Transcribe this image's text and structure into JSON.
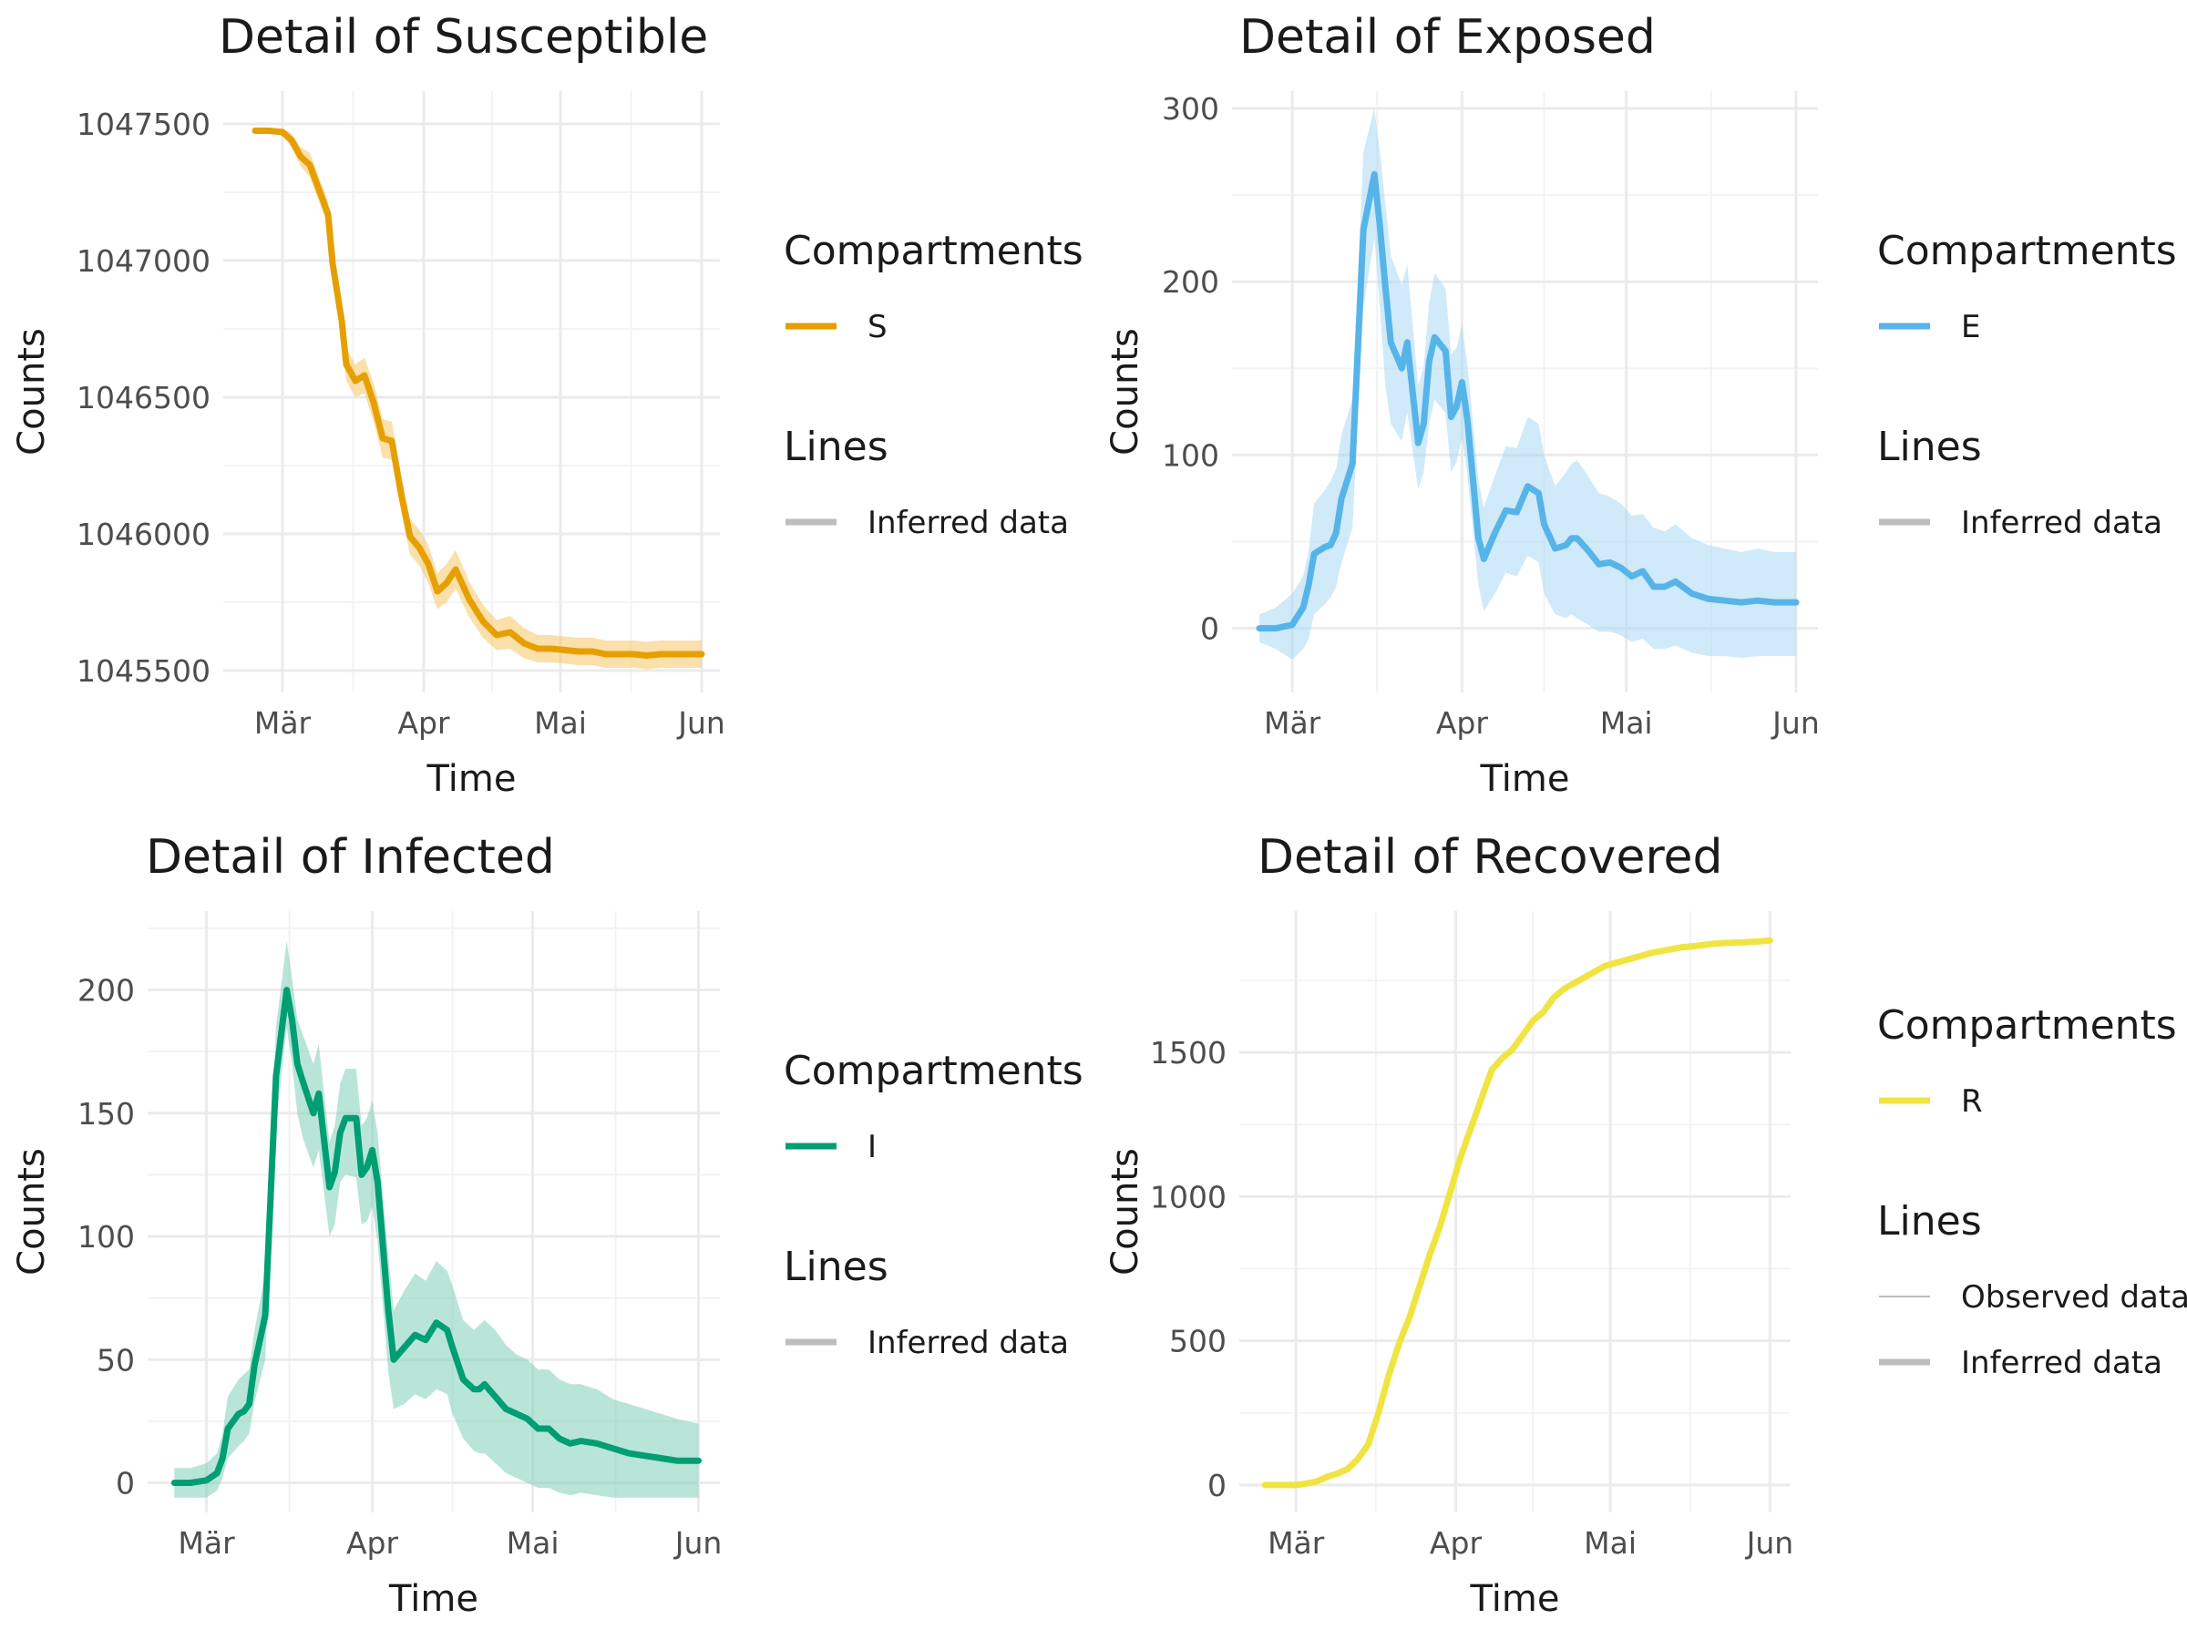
{
  "chart_data": [
    {
      "type": "line",
      "title": "Detail of Susceptible",
      "xlabel": "Time",
      "ylabel": "Counts",
      "x_ticks": [
        "Mär",
        "Apr",
        "Mai",
        "Jun"
      ],
      "y_ticks": [
        1045500,
        1046000,
        1046500,
        1047000,
        1047500
      ],
      "ylim": [
        1045420,
        1047620
      ],
      "grid": true,
      "color": "#E69F00",
      "band_color": "#F5C766",
      "legend": {
        "position": "right",
        "compartments_title": "Compartments",
        "compartments": [
          "S"
        ],
        "lines_title": "Lines",
        "lines": [
          "Inferred data"
        ]
      },
      "series": [
        {
          "name": "S",
          "x": [
            "2020-02-24",
            "2020-02-27",
            "2020-03-01",
            "2020-03-03",
            "2020-03-05",
            "2020-03-07",
            "2020-03-09",
            "2020-03-11",
            "2020-03-12",
            "2020-03-14",
            "2020-03-15",
            "2020-03-17",
            "2020-03-19",
            "2020-03-21",
            "2020-03-23",
            "2020-03-25",
            "2020-03-27",
            "2020-03-29",
            "2020-03-31",
            "2020-04-02",
            "2020-04-04",
            "2020-04-06",
            "2020-04-08",
            "2020-04-11",
            "2020-04-14",
            "2020-04-17",
            "2020-04-20",
            "2020-04-23",
            "2020-04-26",
            "2020-04-29",
            "2020-05-02",
            "2020-05-05",
            "2020-05-08",
            "2020-05-11",
            "2020-05-14",
            "2020-05-17",
            "2020-05-20",
            "2020-05-23",
            "2020-05-26",
            "2020-05-29",
            "2020-06-01"
          ],
          "y": [
            1047475,
            1047475,
            1047470,
            1047440,
            1047380,
            1047350,
            1047260,
            1047170,
            1046990,
            1046780,
            1046620,
            1046560,
            1046580,
            1046480,
            1046350,
            1046340,
            1046150,
            1045990,
            1045950,
            1045890,
            1045790,
            1045820,
            1045870,
            1045760,
            1045680,
            1045630,
            1045640,
            1045600,
            1045580,
            1045580,
            1045575,
            1045570,
            1045570,
            1045560,
            1045560,
            1045560,
            1045555,
            1045560,
            1045560,
            1045560,
            1045560
          ],
          "lower": [
            1047470,
            1047470,
            1047460,
            1047415,
            1047345,
            1047305,
            1047215,
            1047125,
            1046945,
            1046725,
            1046560,
            1046500,
            1046515,
            1046410,
            1046280,
            1046270,
            1046085,
            1045925,
            1045885,
            1045820,
            1045725,
            1045750,
            1045800,
            1045695,
            1045620,
            1045575,
            1045580,
            1045545,
            1045530,
            1045530,
            1045525,
            1045520,
            1045520,
            1045510,
            1045510,
            1045510,
            1045505,
            1045510,
            1045510,
            1045510,
            1045510
          ],
          "upper": [
            1047480,
            1047480,
            1047485,
            1047465,
            1047415,
            1047395,
            1047305,
            1047215,
            1047035,
            1046835,
            1046680,
            1046620,
            1046645,
            1046550,
            1046420,
            1046410,
            1046215,
            1046055,
            1046015,
            1045960,
            1045855,
            1045890,
            1045940,
            1045825,
            1045740,
            1045685,
            1045700,
            1045655,
            1045630,
            1045630,
            1045625,
            1045620,
            1045620,
            1045610,
            1045610,
            1045610,
            1045605,
            1045610,
            1045610,
            1045610,
            1045610
          ]
        }
      ]
    },
    {
      "type": "line",
      "title": "Detail of Exposed",
      "xlabel": "Time",
      "ylabel": "Counts",
      "x_ticks": [
        "Mär",
        "Apr",
        "Mai",
        "Jun"
      ],
      "y_ticks": [
        0,
        100,
        200,
        300
      ],
      "ylim": [
        -37,
        310
      ],
      "grid": true,
      "color": "#56B4E9",
      "band_color": "#A9D9F4",
      "legend": {
        "position": "right",
        "compartments_title": "Compartments",
        "compartments": [
          "E"
        ],
        "lines_title": "Lines",
        "lines": [
          "Inferred data"
        ]
      },
      "series": [
        {
          "name": "E",
          "x": [
            "2020-02-24",
            "2020-02-27",
            "2020-03-01",
            "2020-03-03",
            "2020-03-04",
            "2020-03-05",
            "2020-03-07",
            "2020-03-08",
            "2020-03-09",
            "2020-03-10",
            "2020-03-12",
            "2020-03-14",
            "2020-03-16",
            "2020-03-17",
            "2020-03-18",
            "2020-03-19",
            "2020-03-21",
            "2020-03-22",
            "2020-03-24",
            "2020-03-25",
            "2020-03-26",
            "2020-03-27",
            "2020-03-29",
            "2020-03-30",
            "2020-03-31",
            "2020-04-01",
            "2020-04-02",
            "2020-04-04",
            "2020-04-05",
            "2020-04-07",
            "2020-04-09",
            "2020-04-11",
            "2020-04-13",
            "2020-04-15",
            "2020-04-16",
            "2020-04-18",
            "2020-04-20",
            "2020-04-21",
            "2020-04-22",
            "2020-04-24",
            "2020-04-26",
            "2020-04-28",
            "2020-04-30",
            "2020-05-02",
            "2020-05-04",
            "2020-05-06",
            "2020-05-08",
            "2020-05-10",
            "2020-05-13",
            "2020-05-16",
            "2020-05-19",
            "2020-05-22",
            "2020-05-25",
            "2020-05-28",
            "2020-06-01"
          ],
          "y": [
            0,
            0,
            2,
            12,
            25,
            43,
            47,
            48,
            55,
            75,
            95,
            230,
            262,
            232,
            197,
            165,
            150,
            165,
            107,
            118,
            154,
            168,
            160,
            122,
            128,
            142,
            120,
            52,
            40,
            55,
            68,
            67,
            82,
            78,
            60,
            46,
            48,
            52,
            52,
            45,
            37,
            38,
            35,
            30,
            33,
            24,
            24,
            27,
            20,
            17,
            16,
            15,
            16,
            15,
            15
          ],
          "lower": [
            -8,
            -12,
            -18,
            -12,
            -6,
            8,
            14,
            18,
            24,
            38,
            58,
            185,
            225,
            185,
            140,
            118,
            108,
            125,
            80,
            90,
            118,
            132,
            124,
            90,
            96,
            110,
            88,
            25,
            10,
            20,
            32,
            30,
            42,
            38,
            20,
            8,
            6,
            8,
            6,
            2,
            -2,
            -2,
            -4,
            -8,
            -6,
            -12,
            -12,
            -10,
            -14,
            -16,
            -16,
            -17,
            -16,
            -16,
            -16
          ],
          "upper": [
            8,
            12,
            20,
            30,
            45,
            72,
            80,
            85,
            92,
            112,
            132,
            275,
            300,
            275,
            245,
            215,
            198,
            210,
            140,
            150,
            188,
            205,
            196,
            158,
            162,
            175,
            152,
            85,
            70,
            88,
            105,
            104,
            122,
            118,
            100,
            82,
            90,
            95,
            97,
            88,
            78,
            76,
            72,
            65,
            66,
            58,
            56,
            60,
            52,
            48,
            46,
            44,
            46,
            44,
            44
          ]
        }
      ]
    },
    {
      "type": "line",
      "title": "Detail of Infected",
      "xlabel": "Time",
      "ylabel": "Counts",
      "x_ticks": [
        "Mär",
        "Apr",
        "Mai",
        "Jun"
      ],
      "y_ticks": [
        0,
        50,
        100,
        150,
        200
      ],
      "ylim": [
        -12,
        232
      ],
      "grid": true,
      "color": "#009E73",
      "band_color": "#80CFB9",
      "legend": {
        "position": "right",
        "compartments_title": "Compartments",
        "compartments": [
          "I"
        ],
        "lines_title": "Lines",
        "lines": [
          "Inferred data"
        ]
      },
      "series": [
        {
          "name": "I",
          "x": [
            "2020-02-24",
            "2020-02-27",
            "2020-03-01",
            "2020-03-03",
            "2020-03-04",
            "2020-03-05",
            "2020-03-07",
            "2020-03-08",
            "2020-03-09",
            "2020-03-10",
            "2020-03-12",
            "2020-03-14",
            "2020-03-16",
            "2020-03-17",
            "2020-03-18",
            "2020-03-19",
            "2020-03-21",
            "2020-03-22",
            "2020-03-24",
            "2020-03-25",
            "2020-03-26",
            "2020-03-27",
            "2020-03-29",
            "2020-03-30",
            "2020-03-31",
            "2020-04-01",
            "2020-04-02",
            "2020-04-04",
            "2020-04-05",
            "2020-04-07",
            "2020-04-09",
            "2020-04-11",
            "2020-04-13",
            "2020-04-15",
            "2020-04-16",
            "2020-04-18",
            "2020-04-20",
            "2020-04-21",
            "2020-04-22",
            "2020-04-24",
            "2020-04-26",
            "2020-04-28",
            "2020-04-30",
            "2020-05-02",
            "2020-05-04",
            "2020-05-06",
            "2020-05-08",
            "2020-05-10",
            "2020-05-13",
            "2020-05-16",
            "2020-05-19",
            "2020-05-22",
            "2020-05-25",
            "2020-05-28",
            "2020-06-01"
          ],
          "y": [
            0,
            0,
            1,
            4,
            10,
            22,
            28,
            29,
            32,
            48,
            68,
            165,
            200,
            188,
            170,
            163,
            150,
            158,
            120,
            126,
            142,
            148,
            148,
            125,
            128,
            135,
            122,
            70,
            50,
            55,
            60,
            58,
            65,
            62,
            55,
            42,
            38,
            38,
            40,
            35,
            30,
            28,
            26,
            22,
            22,
            18,
            16,
            17,
            16,
            14,
            12,
            11,
            10,
            9,
            9
          ],
          "lower": [
            -6,
            -6,
            -6,
            -3,
            2,
            10,
            15,
            17,
            20,
            33,
            50,
            145,
            185,
            170,
            150,
            140,
            128,
            135,
            100,
            105,
            122,
            125,
            124,
            105,
            106,
            112,
            98,
            45,
            30,
            32,
            36,
            34,
            38,
            36,
            28,
            18,
            13,
            12,
            12,
            8,
            4,
            2,
            0,
            -2,
            -2,
            -4,
            -5,
            -4,
            -5,
            -6,
            -6,
            -6,
            -6,
            -6,
            -6
          ],
          "upper": [
            6,
            6,
            8,
            12,
            20,
            35,
            42,
            44,
            46,
            62,
            85,
            185,
            220,
            205,
            188,
            182,
            170,
            178,
            138,
            145,
            162,
            168,
            168,
            145,
            148,
            155,
            142,
            92,
            70,
            78,
            85,
            82,
            90,
            86,
            80,
            66,
            62,
            64,
            66,
            62,
            56,
            52,
            50,
            46,
            46,
            42,
            40,
            40,
            38,
            34,
            32,
            30,
            28,
            26,
            24
          ]
        }
      ]
    },
    {
      "type": "line",
      "title": "Detail of Recovered",
      "xlabel": "Time",
      "ylabel": "Counts",
      "x_ticks": [
        "Mär",
        "Apr",
        "Mai",
        "Jun"
      ],
      "y_ticks": [
        0,
        500,
        1000,
        1500
      ],
      "ylim": [
        -95,
        1990
      ],
      "grid": true,
      "color": "#F0E442",
      "legend": {
        "position": "right",
        "compartments_title": "Compartments",
        "compartments": [
          "R"
        ],
        "lines_title": "Lines",
        "lines": [
          "Observed data",
          "Inferred data"
        ]
      },
      "series": [
        {
          "name": "R",
          "x": [
            "2020-02-24",
            "2020-02-27",
            "2020-03-01",
            "2020-03-03",
            "2020-03-05",
            "2020-03-07",
            "2020-03-09",
            "2020-03-11",
            "2020-03-13",
            "2020-03-15",
            "2020-03-17",
            "2020-03-19",
            "2020-03-21",
            "2020-03-23",
            "2020-03-25",
            "2020-03-27",
            "2020-03-29",
            "2020-03-31",
            "2020-04-02",
            "2020-04-04",
            "2020-04-06",
            "2020-04-08",
            "2020-04-10",
            "2020-04-12",
            "2020-04-14",
            "2020-04-16",
            "2020-04-18",
            "2020-04-20",
            "2020-04-22",
            "2020-04-24",
            "2020-04-27",
            "2020-04-30",
            "2020-05-03",
            "2020-05-06",
            "2020-05-09",
            "2020-05-12",
            "2020-05-15",
            "2020-05-18",
            "2020-05-21",
            "2020-05-24",
            "2020-05-27",
            "2020-05-30",
            "2020-06-01"
          ],
          "y": [
            0,
            0,
            0,
            5,
            12,
            28,
            40,
            55,
            90,
            140,
            250,
            380,
            490,
            580,
            690,
            800,
            900,
            1020,
            1140,
            1240,
            1340,
            1440,
            1480,
            1510,
            1560,
            1610,
            1640,
            1690,
            1720,
            1740,
            1770,
            1800,
            1815,
            1830,
            1845,
            1855,
            1865,
            1870,
            1877,
            1880,
            1882,
            1885,
            1888
          ]
        }
      ]
    }
  ]
}
